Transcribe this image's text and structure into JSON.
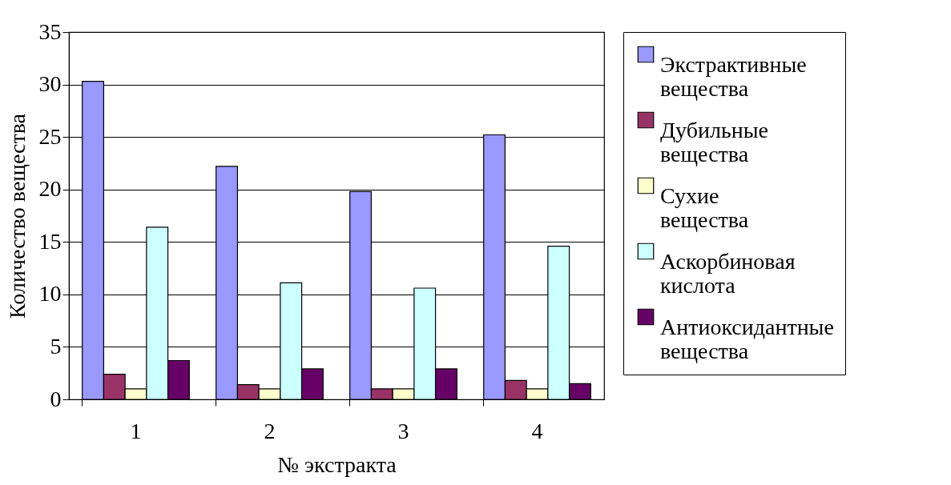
{
  "chart_data": {
    "type": "bar",
    "xlabel": "№ экстракта",
    "ylabel": "Количество вещества",
    "categories": [
      "1",
      "2",
      "3",
      "4"
    ],
    "ylim": [
      0,
      35
    ],
    "yticks": [
      0,
      5,
      10,
      15,
      20,
      25,
      30,
      35
    ],
    "grid": "y",
    "legend": "right",
    "series": [
      {
        "name": "Экстрактивные вещества",
        "color": "#9999ff",
        "values": [
          30.3,
          22.2,
          19.8,
          25.2
        ]
      },
      {
        "name": "Дубильные вещества",
        "color": "#993366",
        "values": [
          2.4,
          1.4,
          1.0,
          1.8
        ]
      },
      {
        "name": "Сухие вещества",
        "color": "#ffffcc",
        "values": [
          1.0,
          1.0,
          1.0,
          1.0
        ]
      },
      {
        "name": "Аскорбиновая кислота",
        "color": "#ccffff",
        "values": [
          16.4,
          11.1,
          10.6,
          14.6
        ]
      },
      {
        "name": "Антиоксидантные вещества",
        "color": "#660066",
        "values": [
          3.7,
          2.9,
          2.9,
          1.5
        ]
      }
    ]
  }
}
